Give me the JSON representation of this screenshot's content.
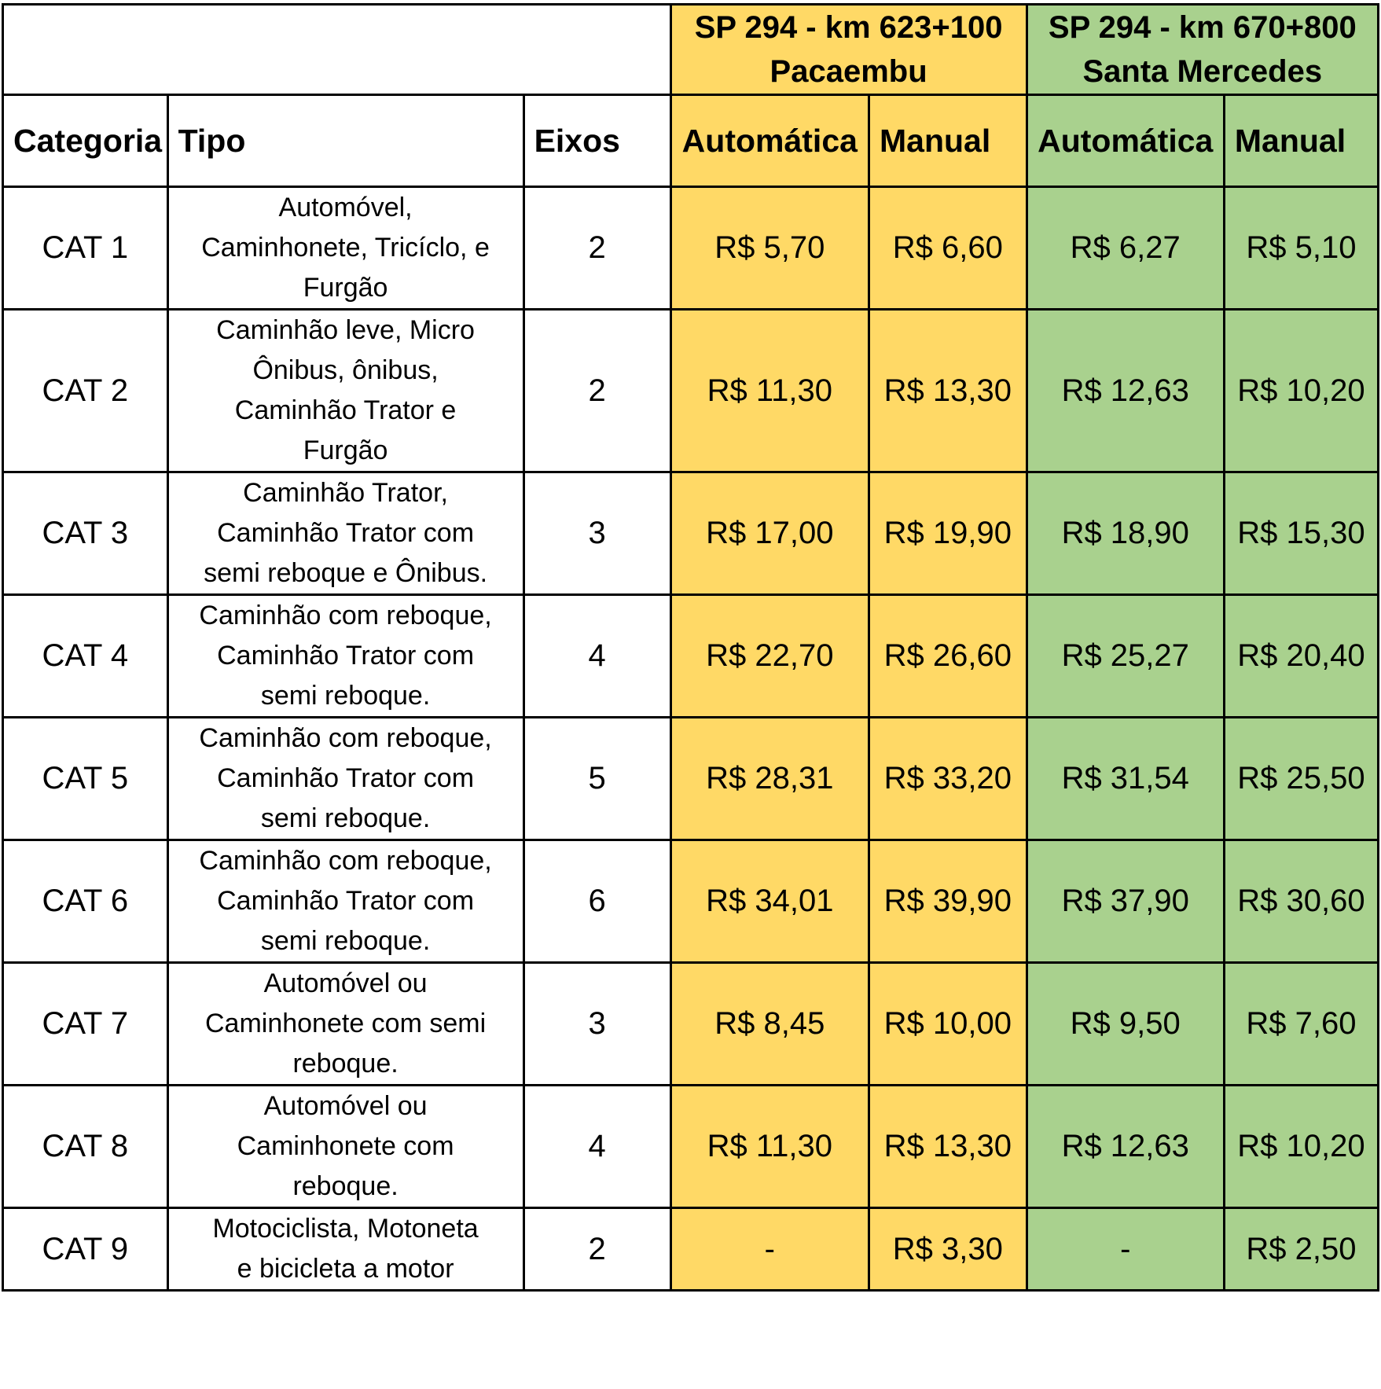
{
  "plazas": [
    {
      "line1": "SP 294 - km 623+100",
      "line2": "Pacaembu",
      "color": "#ffd966"
    },
    {
      "line1": "SP 294 - km 670+800",
      "line2": "Santa Mercedes",
      "color": "#a9d18e"
    }
  ],
  "headers": {
    "categoria": "Categoria",
    "tipo": "Tipo",
    "eixos": "Eixos",
    "automatica_1": "Automática",
    "manual_1": "Manual",
    "automatica_2": "Automática",
    "manual_2": "Manual"
  },
  "rows": [
    {
      "categoria": "CAT 1",
      "tipo": [
        "Automóvel,",
        "Caminhonete, Tricíclo, e",
        "Furgão"
      ],
      "eixos": "2",
      "fares": [
        "R$ 5,70",
        "R$ 6,60",
        "R$ 6,27",
        "R$ 5,10"
      ]
    },
    {
      "categoria": "CAT 2",
      "tipo": [
        "Caminhão leve, Micro",
        "Ônibus, ônibus,",
        "Caminhão Trator e",
        "Furgão"
      ],
      "eixos": "2",
      "fares": [
        "R$ 11,30",
        "R$ 13,30",
        "R$ 12,63",
        "R$ 10,20"
      ]
    },
    {
      "categoria": "CAT 3",
      "tipo": [
        "Caminhão Trator,",
        "Caminhão Trator com",
        "semi reboque e Ônibus."
      ],
      "eixos": "3",
      "fares": [
        "R$ 17,00",
        "R$ 19,90",
        "R$ 18,90",
        "R$ 15,30"
      ]
    },
    {
      "categoria": "CAT 4",
      "tipo": [
        "Caminhão com reboque,",
        "Caminhão Trator com",
        "semi reboque."
      ],
      "eixos": "4",
      "fares": [
        "R$ 22,70",
        "R$ 26,60",
        "R$ 25,27",
        "R$ 20,40"
      ]
    },
    {
      "categoria": "CAT 5",
      "tipo": [
        "Caminhão com reboque,",
        "Caminhão Trator com",
        "semi reboque."
      ],
      "eixos": "5",
      "fares": [
        "R$ 28,31",
        "R$ 33,20",
        "R$ 31,54",
        "R$ 25,50"
      ]
    },
    {
      "categoria": "CAT 6",
      "tipo": [
        "Caminhão com reboque,",
        "Caminhão Trator com",
        "semi reboque."
      ],
      "eixos": "6",
      "fares": [
        "R$ 34,01",
        "R$ 39,90",
        "R$ 37,90",
        "R$ 30,60"
      ]
    },
    {
      "categoria": "CAT 7",
      "tipo": [
        "Automóvel ou",
        "Caminhonete com semi",
        "reboque."
      ],
      "eixos": "3",
      "fares": [
        "R$ 8,45",
        "R$ 10,00",
        "R$ 9,50",
        "R$ 7,60"
      ]
    },
    {
      "categoria": "CAT 8",
      "tipo": [
        "Automóvel ou",
        "Caminhonete com",
        "reboque."
      ],
      "eixos": "4",
      "fares": [
        "R$ 11,30",
        "R$ 13,30",
        "R$ 12,63",
        "R$ 10,20"
      ]
    },
    {
      "categoria": "CAT 9",
      "tipo": [
        "Motociclista, Motoneta",
        "e bicicleta a motor"
      ],
      "eixos": "2",
      "fares": [
        "-",
        "R$ 3,30",
        "-",
        "R$ 2,50"
      ]
    }
  ]
}
